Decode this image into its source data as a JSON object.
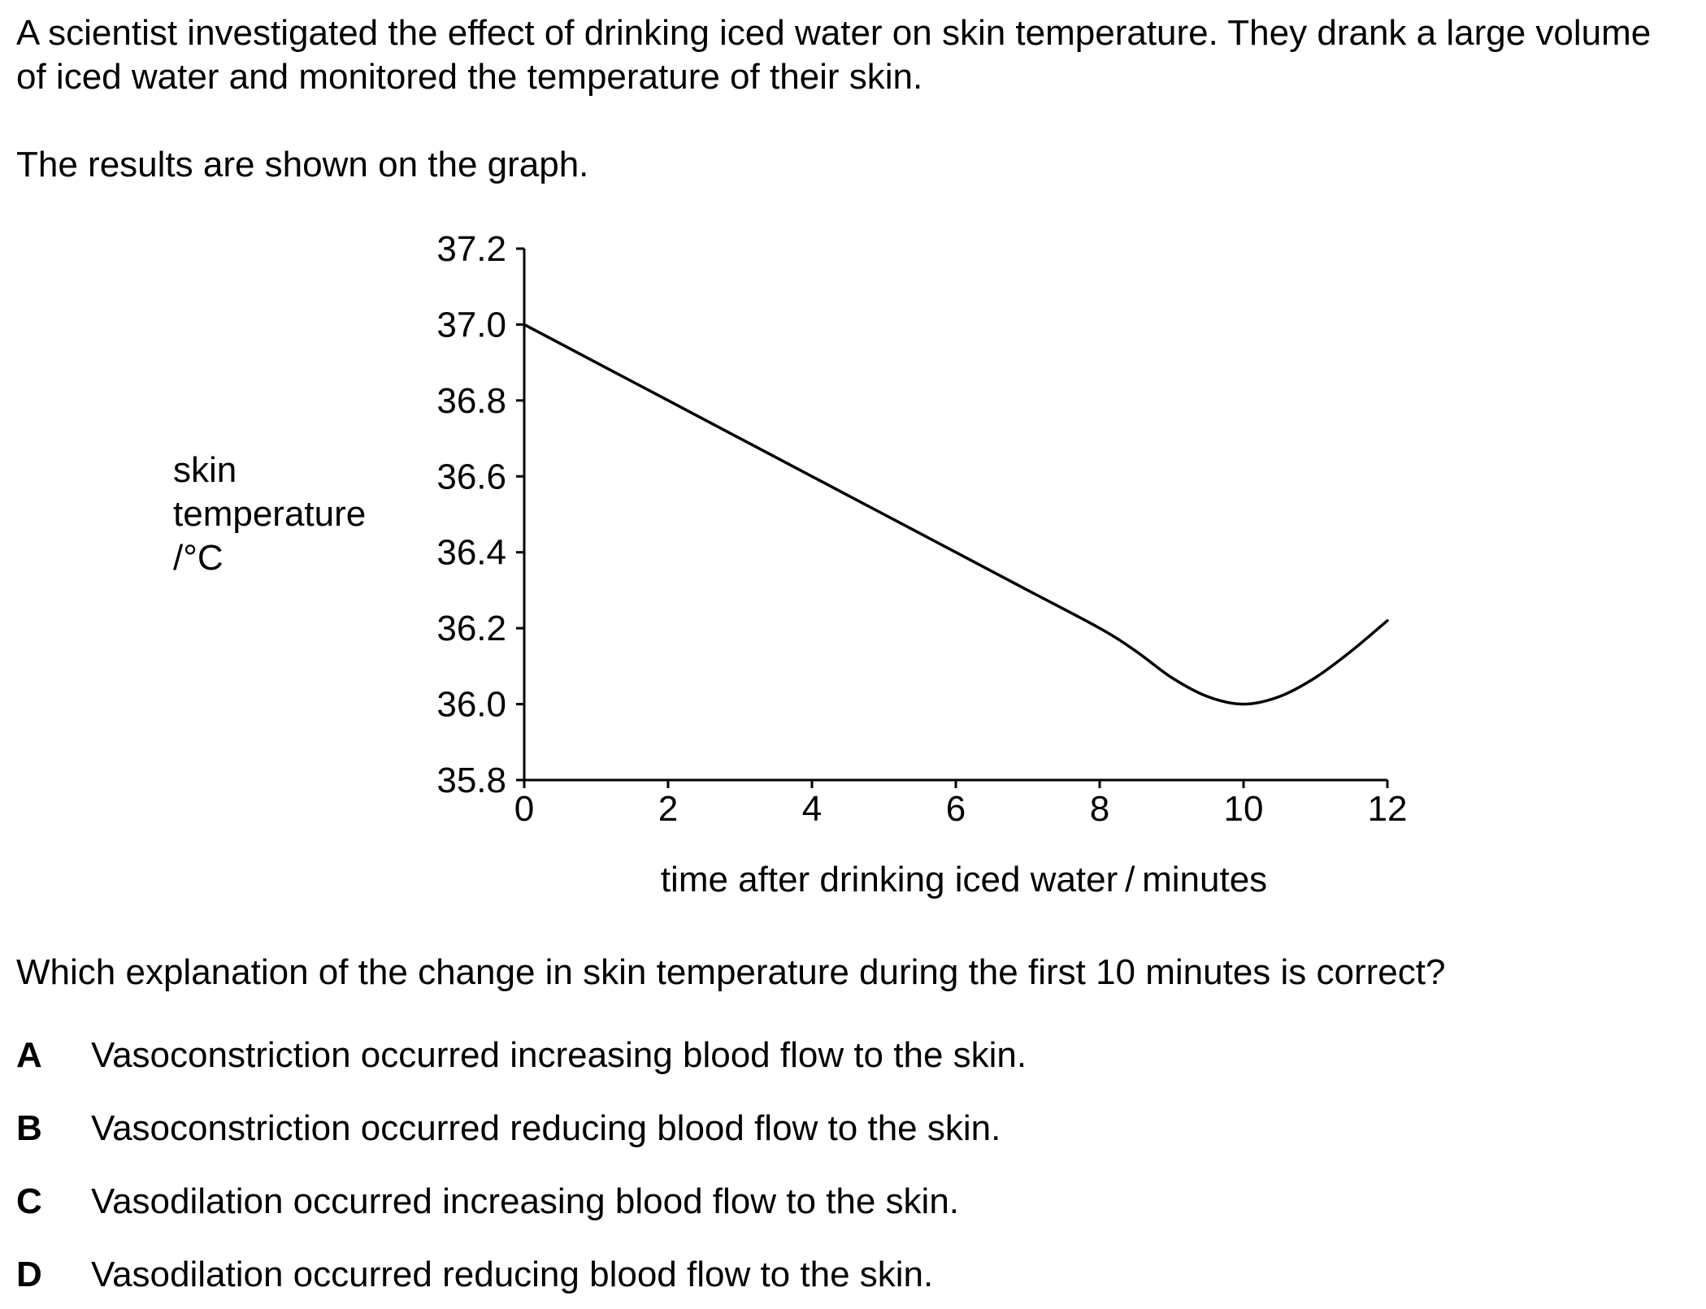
{
  "question": {
    "intro": "A scientist investigated the effect of drinking iced water on skin temperature. They drank a large volume of iced water and monitored the temperature of their skin.",
    "results_text": "The results are shown on the graph.",
    "prompt": "Which explanation of the change in skin temperature during the first 10 minutes is correct?",
    "options": [
      {
        "letter": "A",
        "text": "Vasoconstriction occurred increasing blood flow to the skin."
      },
      {
        "letter": "B",
        "text": "Vasoconstriction occurred reducing blood flow to the skin."
      },
      {
        "letter": "C",
        "text": "Vasodilation occurred increasing blood flow to the skin."
      },
      {
        "letter": "D",
        "text": "Vasodilation occurred reducing blood flow to the skin."
      }
    ]
  },
  "chart_data": {
    "type": "line",
    "title": "",
    "xlabel": "time after drinking iced water / minutes",
    "ylabel_lines": [
      "skin",
      "temperature",
      "/°C"
    ],
    "xlim": [
      0,
      12
    ],
    "ylim": [
      35.8,
      37.2
    ],
    "x_ticks": [
      0,
      2,
      4,
      6,
      8,
      10,
      12
    ],
    "x_tick_labels": [
      "0",
      "2",
      "4",
      "6",
      "8",
      "10",
      "12"
    ],
    "y_ticks": [
      35.8,
      36.0,
      36.2,
      36.4,
      36.6,
      36.8,
      37.0,
      37.2
    ],
    "y_tick_labels": [
      "35.8",
      "36.0",
      "36.2",
      "36.4",
      "36.6",
      "36.8",
      "37.0",
      "37.2"
    ],
    "grid": false,
    "legend": "none",
    "line_color": "#000000",
    "series": [
      {
        "x": [
          0,
          1,
          2,
          3,
          4,
          5,
          6,
          7,
          8,
          8.5,
          9,
          9.5,
          10,
          10.5,
          11,
          11.5,
          12
        ],
        "y": [
          37.0,
          36.9,
          36.8,
          36.7,
          36.6,
          36.5,
          36.4,
          36.3,
          36.2,
          36.14,
          36.07,
          36.02,
          36.0,
          36.02,
          36.07,
          36.14,
          36.22
        ]
      }
    ]
  }
}
